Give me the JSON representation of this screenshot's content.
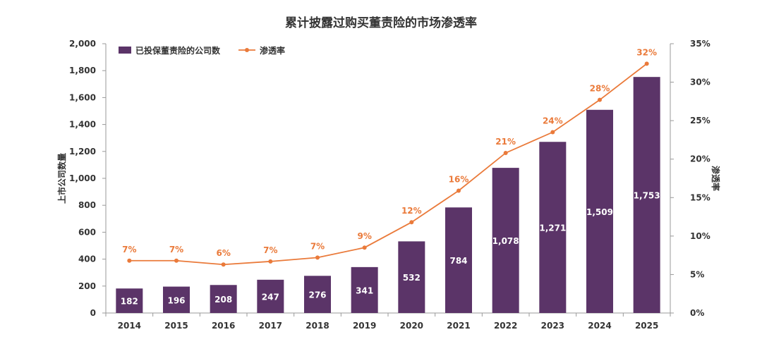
{
  "chart_data": {
    "type": "bar+line",
    "title": "累计披露过购买董责险的市场渗透率",
    "categories": [
      "2014",
      "2015",
      "2016",
      "2017",
      "2018",
      "2019",
      "2020",
      "2021",
      "2022",
      "2023",
      "2024",
      "2025"
    ],
    "series": [
      {
        "name": "已投保董责险的公司数",
        "type": "bar",
        "axis": "left",
        "values": [
          182,
          196,
          208,
          247,
          276,
          341,
          532,
          784,
          1078,
          1271,
          1509,
          1753
        ],
        "labels": [
          "182",
          "196",
          "208",
          "247",
          "276",
          "341",
          "532",
          "784",
          "1,078",
          "1,271",
          "1,509",
          "1,753"
        ]
      },
      {
        "name": "渗透率",
        "type": "line",
        "axis": "right",
        "values": [
          6.8,
          6.8,
          6.3,
          6.7,
          7.2,
          8.5,
          11.8,
          15.9,
          20.8,
          23.5,
          27.7,
          32.4
        ],
        "labels": [
          "7%",
          "7%",
          "6%",
          "7%",
          "7%",
          "9%",
          "12%",
          "16%",
          "21%",
          "24%",
          "28%",
          "32%"
        ]
      }
    ],
    "ylabel": "上市公司数量",
    "ylabel_right": "渗透率",
    "ylim": [
      0,
      2000
    ],
    "ylim_right": [
      0,
      35
    ],
    "y_ticks": [
      "0",
      "200",
      "400",
      "600",
      "800",
      "1,000",
      "1,200",
      "1,400",
      "1,600",
      "1,800",
      "2,000"
    ],
    "y_ticks_right": [
      "0%",
      "5%",
      "10%",
      "15%",
      "20%",
      "25%",
      "30%",
      "35%"
    ],
    "legend_position": "top-left",
    "colors": {
      "bar": "#5b3468",
      "line": "#ea7a3a",
      "bar_label": "#ffffff",
      "axis": "#999999"
    }
  }
}
